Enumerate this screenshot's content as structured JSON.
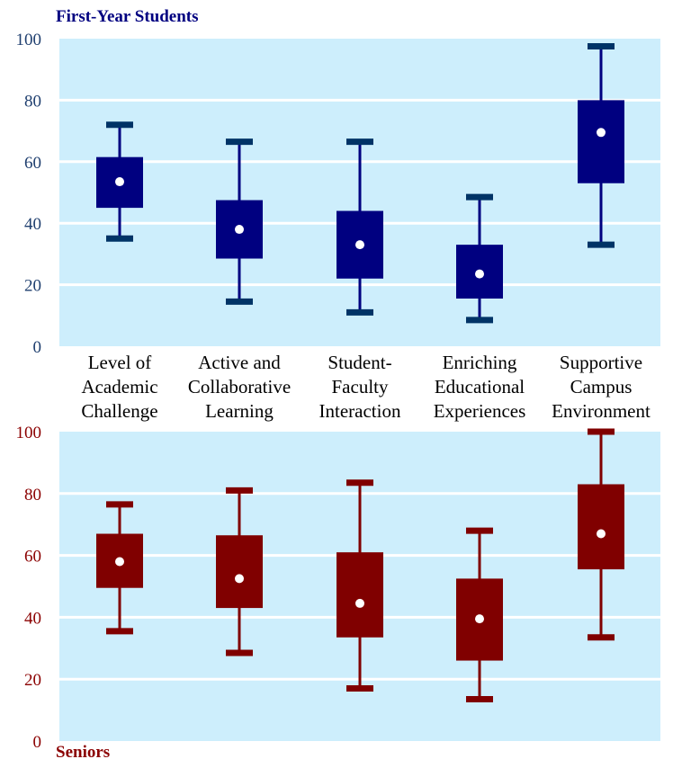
{
  "chart_data": [
    {
      "type": "boxplot",
      "title": "First-Year Students",
      "ylim": [
        0,
        100
      ],
      "yticks": [
        0,
        20,
        40,
        60,
        80,
        100
      ],
      "grid": true,
      "categories": [
        [
          "Level of",
          "Academic",
          "Challenge"
        ],
        [
          "Active and",
          "Collaborative",
          "Learning"
        ],
        [
          "Student-",
          "Faculty",
          "Interaction"
        ],
        [
          "Enriching",
          "Educational",
          "Experiences"
        ],
        [
          "Supportive",
          "Campus",
          "Environment"
        ]
      ],
      "boxes": [
        {
          "min": 35,
          "q1": 45,
          "mean": 53.5,
          "q3": 61.5,
          "max": 72
        },
        {
          "min": 14.5,
          "q1": 28.5,
          "mean": 38,
          "q3": 47.5,
          "max": 66.5
        },
        {
          "min": 11,
          "q1": 22,
          "mean": 33,
          "q3": 44,
          "max": 66.5
        },
        {
          "min": 8.5,
          "q1": 15.5,
          "mean": 23.5,
          "q3": 33,
          "max": 48.5
        },
        {
          "min": 33,
          "q1": 53,
          "mean": 69.5,
          "q3": 80,
          "max": 97.5
        }
      ],
      "colors": {
        "box": "#000080",
        "whisker": "#000080",
        "cap": "#003366",
        "tick_text": "#1f3f6f",
        "background": "#cdeefc"
      }
    },
    {
      "type": "boxplot",
      "title": "Seniors",
      "ylim": [
        0,
        100
      ],
      "yticks": [
        0,
        20,
        40,
        60,
        80,
        100
      ],
      "grid": true,
      "boxes": [
        {
          "min": 35.5,
          "q1": 49.5,
          "mean": 58,
          "q3": 67,
          "max": 76.5
        },
        {
          "min": 28.5,
          "q1": 43,
          "mean": 52.5,
          "q3": 66.5,
          "max": 81
        },
        {
          "min": 17,
          "q1": 33.5,
          "mean": 44.5,
          "q3": 61,
          "max": 83.5
        },
        {
          "min": 13.5,
          "q1": 26,
          "mean": 39.5,
          "q3": 52.5,
          "max": 68
        },
        {
          "min": 33.5,
          "q1": 55.5,
          "mean": 67,
          "q3": 83,
          "max": 100
        }
      ],
      "colors": {
        "box": "#800000",
        "whisker": "#800000",
        "cap": "#800000",
        "tick_text": "#8b0000",
        "background": "#cdeefc"
      }
    }
  ]
}
